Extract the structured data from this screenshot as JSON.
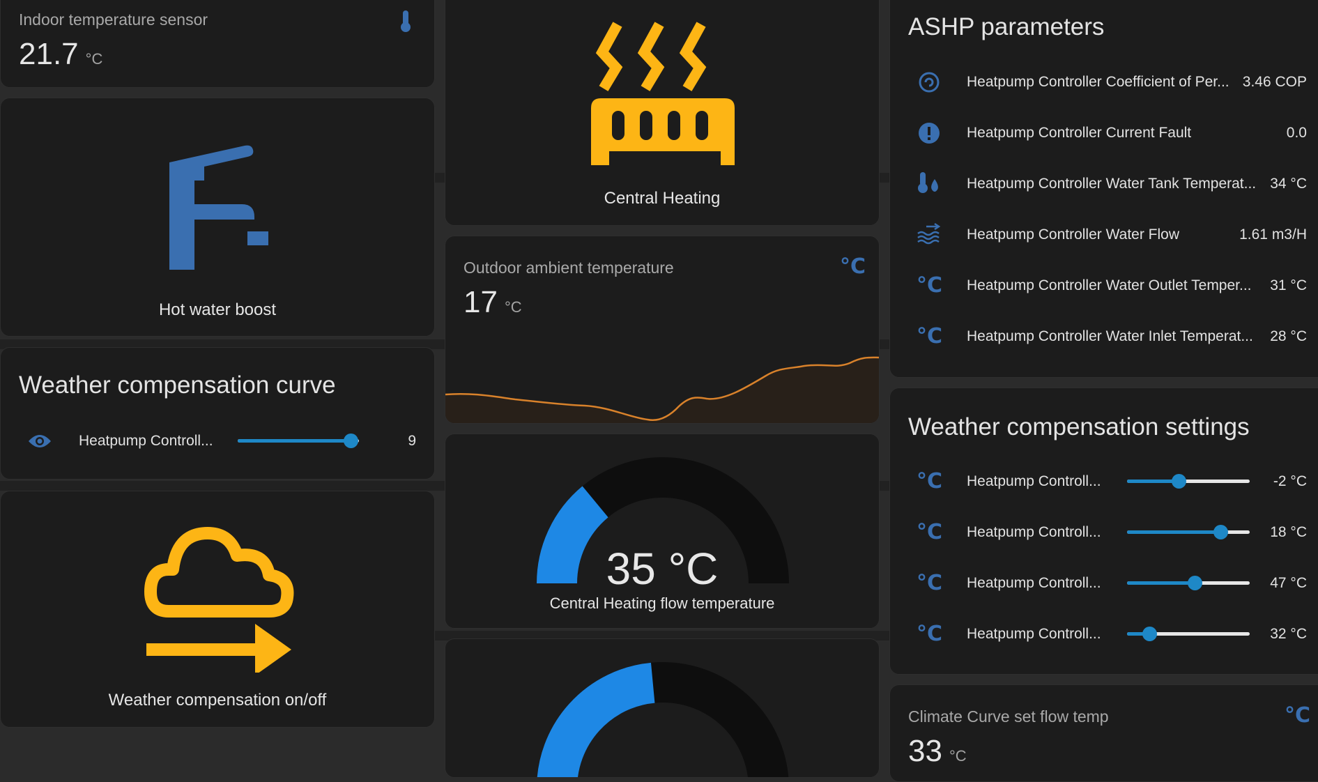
{
  "indoor": {
    "title": "Indoor temperature sensor",
    "value": "21.7",
    "unit": "°C"
  },
  "hot_water": {
    "label": "Hot water boost"
  },
  "wc_curve": {
    "title": "Weather compensation curve",
    "row_label": "Heatpump Controll...",
    "value": "9",
    "level": 0.93
  },
  "wc_onoff": {
    "label": "Weather compensation on/off"
  },
  "central_heating": {
    "label": "Central Heating"
  },
  "outdoor": {
    "title": "Outdoor ambient temperature",
    "value": "17",
    "unit": "°C",
    "icon_text": "°C"
  },
  "flow_gauge": {
    "value": "35 °C",
    "label": "Central Heating flow temperature",
    "fraction": 0.28
  },
  "gauge2": {
    "fraction": 0.47
  },
  "ashp": {
    "title": "ASHP parameters",
    "rows": [
      {
        "icon": "cop-icon",
        "label": "Heatpump Controller Coefficient of Per...",
        "value": "3.46 COP"
      },
      {
        "icon": "alert-circle-icon",
        "label": "Heatpump Controller Current Fault",
        "value": "0.0"
      },
      {
        "icon": "thermometer-water-icon",
        "label": "Heatpump Controller Water Tank Temperat...",
        "value": "34 °C"
      },
      {
        "icon": "water-flow-icon",
        "label": "Heatpump Controller Water Flow",
        "value": "1.61 m3/H"
      },
      {
        "icon": "celsius-icon",
        "label": "Heatpump Controller Water Outlet Temper...",
        "value": "31 °C"
      },
      {
        "icon": "celsius-icon",
        "label": "Heatpump Controller Water Inlet Temperat...",
        "value": "28 °C"
      }
    ],
    "degc_glyph": "°C"
  },
  "wc_settings": {
    "title": "Weather compensation settings",
    "rows": [
      {
        "label": "Heatpump Controll...",
        "value": "-2 °C",
        "level": 0.42
      },
      {
        "label": "Heatpump Controll...",
        "value": "18 °C",
        "level": 0.76
      },
      {
        "label": "Heatpump Controll...",
        "value": "47 °C",
        "level": 0.55
      },
      {
        "label": "Heatpump Controll...",
        "value": "32 °C",
        "level": 0.18
      }
    ]
  },
  "climate_curve": {
    "title": "Climate Curve set flow temp",
    "value": "33",
    "unit": "°C",
    "icon_text": "°C"
  },
  "colors": {
    "accent_yellow": "#fdb515",
    "accent_blue": "#1e88c7",
    "icon_blue": "#3a6fb0",
    "graph_orange": "#d9822b"
  }
}
